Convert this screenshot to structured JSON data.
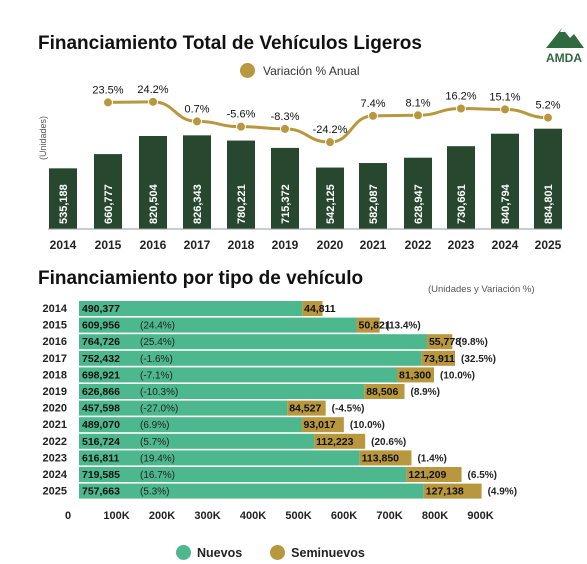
{
  "chart_data": [
    {
      "type": "bar",
      "title": "Financiamiento Total de Vehículos Ligeros",
      "ylabel": "(Unidades)",
      "categories": [
        "2014",
        "2015",
        "2016",
        "2017",
        "2018",
        "2019",
        "2020",
        "2021",
        "2022",
        "2023",
        "2024",
        "2025"
      ],
      "series": [
        {
          "values": [
            535188,
            660777,
            820504,
            826343,
            780221,
            715372,
            542125,
            582087,
            628947,
            730661,
            840794,
            884801
          ],
          "labels": [
            "535,188",
            "660,777",
            "820,504",
            "826,343",
            "780,221",
            "715,372",
            "542,125",
            "582,087",
            "628,947",
            "730,661",
            "840,794",
            "884,801"
          ]
        }
      ],
      "line_series": {
        "name": "Variación % Anual",
        "values": [
          null,
          23.5,
          24.2,
          0.7,
          -5.6,
          -8.3,
          -24.2,
          7.4,
          8.1,
          16.2,
          15.1,
          5.2
        ],
        "labels": [
          "",
          "23.5%",
          "24.2%",
          "0.7%",
          "-5.6%",
          "-8.3%",
          "-24.2%",
          "7.4%",
          "8.1%",
          "16.2%",
          "15.1%",
          "5.2%"
        ]
      },
      "colors": {
        "bar": "#27482f",
        "line": "#b8973f"
      }
    },
    {
      "type": "bar",
      "orientation": "horizontal",
      "stacked": true,
      "title": "Financiamiento por tipo de vehículo",
      "subtitle": "(Unidades y Variación %)",
      "categories": [
        "2014",
        "2015",
        "2016",
        "2017",
        "2018",
        "2019",
        "2020",
        "2021",
        "2022",
        "2023",
        "2024",
        "2025"
      ],
      "xlim": [
        0,
        1000000
      ],
      "xticks": [
        "0",
        "100K",
        "200K",
        "300K",
        "400K",
        "500K",
        "600K",
        "700K",
        "800K",
        "900K"
      ],
      "series": [
        {
          "name": "Nuevos",
          "values": [
            490377,
            609956,
            764726,
            752432,
            698921,
            626866,
            457598,
            489070,
            516724,
            616811,
            719585,
            757663
          ],
          "labels": [
            "490,377",
            "609,956",
            "764,726",
            "752,432",
            "698,921",
            "626,866",
            "457,598",
            "489,070",
            "516,724",
            "616,811",
            "719,585",
            "757,663"
          ],
          "var": [
            "",
            "(24.4%)",
            "(25.4%)",
            "(-1.6%)",
            "(-7.1%)",
            "(-10.3%)",
            "(-27.0%)",
            "(6.9%)",
            "(5.7%)",
            "(19.4%)",
            "(16.7%)",
            "(5.3%)"
          ]
        },
        {
          "name": "Seminuevos",
          "values": [
            44811,
            50821,
            55778,
            73911,
            81300,
            88506,
            84527,
            93017,
            112223,
            113850,
            121209,
            127138
          ],
          "labels": [
            "44,811",
            "50,821",
            "55,778",
            "73,911",
            "81,300",
            "88,506",
            "84,527",
            "93,017",
            "112,223",
            "113,850",
            "121,209",
            "127,138"
          ],
          "var": [
            "",
            "(13.4%)",
            "(9.8%)",
            "(32.5%)",
            "(10.0%)",
            "(8.9%)",
            "(-4.5%)",
            "(10.0%)",
            "(20.6%)",
            "(1.4%)",
            "(6.5%)",
            "(4.9%)"
          ]
        }
      ],
      "colors": {
        "Nuevos": "#4db88d",
        "Seminuevos": "#b8973f"
      }
    }
  ],
  "logo_text": "AMDA"
}
